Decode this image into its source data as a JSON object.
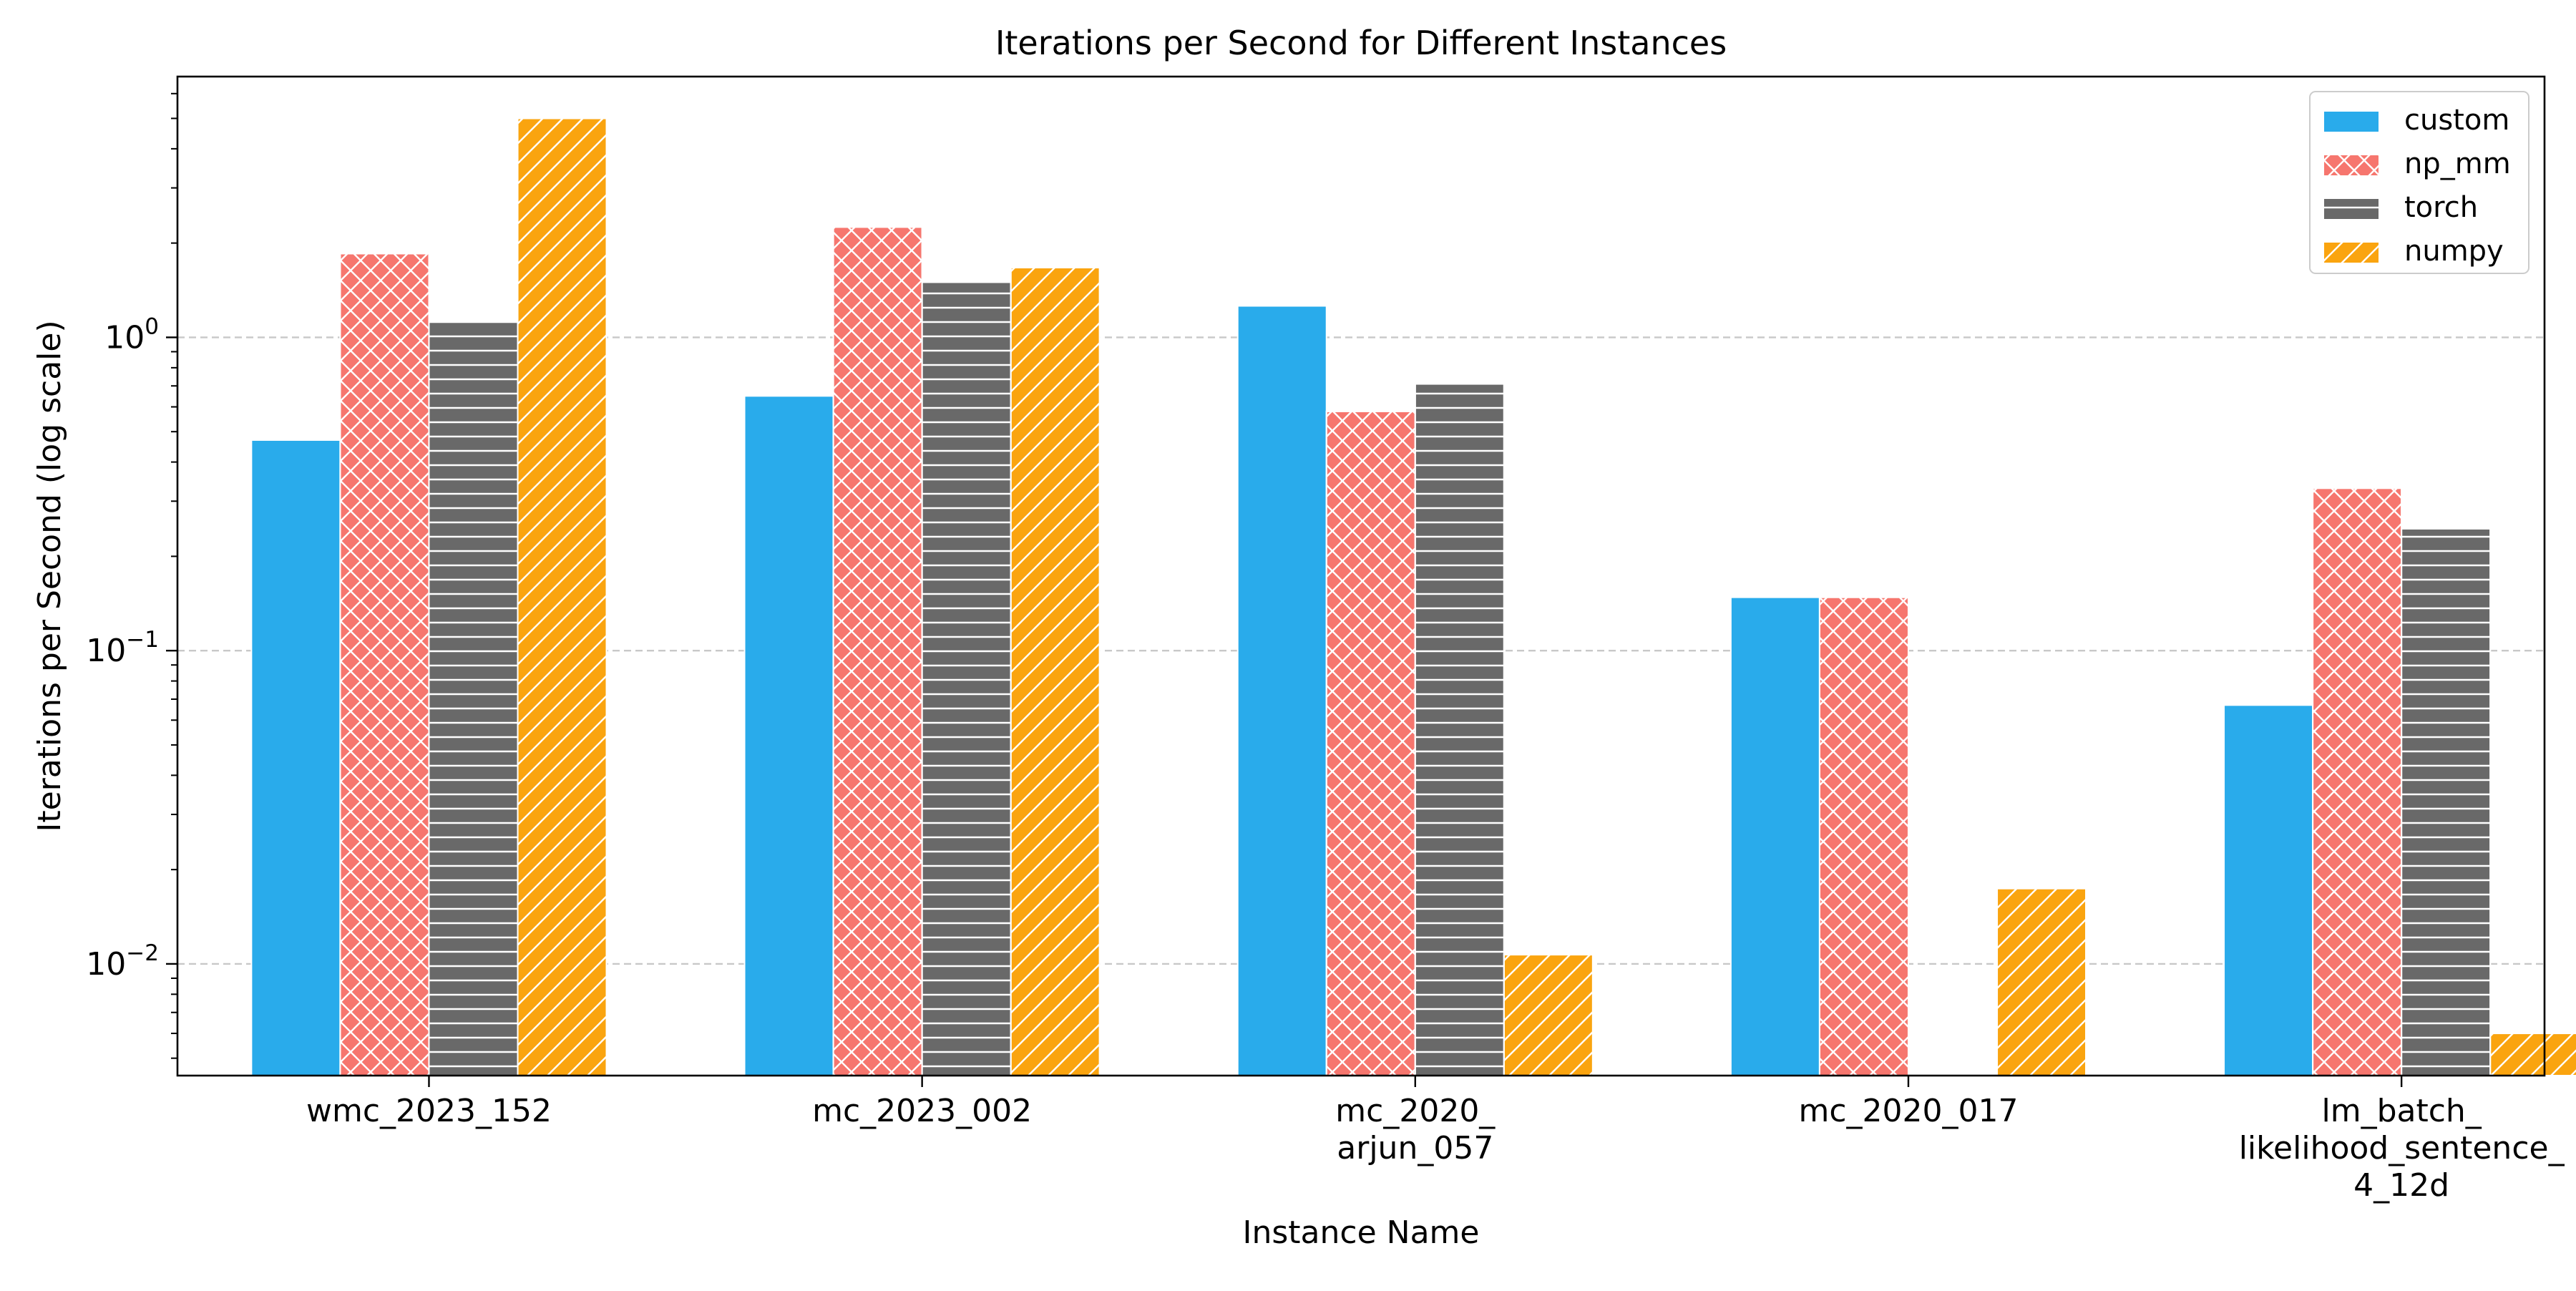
{
  "chart_data": {
    "type": "bar",
    "title": "Iterations per Second for Different Instances",
    "xlabel": "Instance Name",
    "ylabel": "Iterations per Second (log scale)",
    "yscale": "log",
    "ylim": [
      0.0044,
      6.8
    ],
    "grid": "y-major-dashed",
    "legend_position": "top-right",
    "categories": [
      "wmc_2023_152",
      "mc_2023_002",
      "mc_2020_\narjun_057",
      "mc_2020_017",
      "lm_batch_\nlikelihood_sentence_\n4_12d"
    ],
    "yticks": [
      {
        "value": 0.01,
        "base": "10",
        "exp": "−2"
      },
      {
        "value": 0.1,
        "base": "10",
        "exp": "−1"
      },
      {
        "value": 1,
        "base": "10",
        "exp": "0"
      }
    ],
    "series": [
      {
        "name": "custom",
        "color": "#29ABEB",
        "pattern": "solid",
        "values": [
          0.47,
          0.65,
          1.26,
          0.148,
          0.067
        ]
      },
      {
        "name": "np_mm",
        "color": "#F6766E",
        "pattern": "crosshatch",
        "values": [
          1.85,
          2.25,
          0.58,
          0.148,
          0.33
        ]
      },
      {
        "name": "torch",
        "color": "#696969",
        "pattern": "horizontal",
        "values": [
          1.13,
          1.5,
          0.71,
          null,
          0.245
        ]
      },
      {
        "name": "numpy",
        "color": "#FAA40F",
        "pattern": "diagonal",
        "values": [
          5.0,
          1.67,
          0.0107,
          0.0174,
          0.006
        ]
      }
    ]
  }
}
